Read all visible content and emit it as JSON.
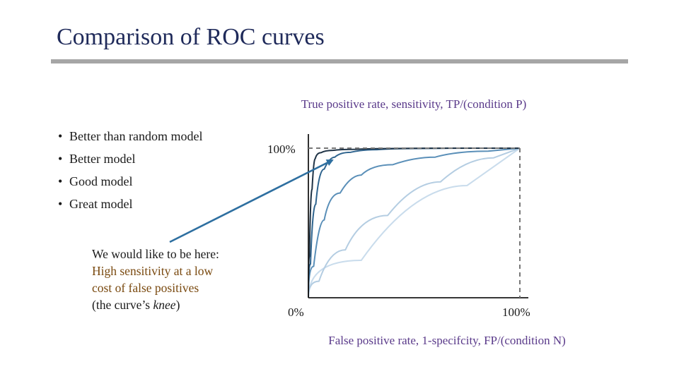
{
  "title": "Comparison of ROC curves",
  "bullets": [
    "Better than random model",
    "Better model",
    "Good model",
    "Great model"
  ],
  "note": {
    "line1": "We would like to be here:",
    "line2": "High sensitivity at a low",
    "line3": "cost of false positives",
    "line4_prefix": "(the curve’s ",
    "line4_em": "knee",
    "line4_suffix": ")"
  },
  "colors": {
    "title": "#1f2a5a",
    "axis_labels": "#5a3a8a",
    "arrow": "#2e6fa0",
    "series": [
      "#b8d0e4",
      "#5a8fb8",
      "#2f648e",
      "#1f3346"
    ]
  },
  "chart_data": {
    "type": "line",
    "xlabel": "False positive rate, 1-specifcity, FP/(condition N)",
    "ylabel": "True positive rate, sensitivity, TP/(condition P)",
    "x_ticks": [
      "0%",
      "100%"
    ],
    "y_ticks": [
      "100%"
    ],
    "xlim": [
      0,
      1
    ],
    "ylim": [
      0,
      1
    ],
    "grid": false,
    "series": [
      {
        "x": [
          0,
          0.5,
          1
        ],
        "y": [
          0,
          0.5,
          1
        ]
      },
      {
        "x": [
          0,
          0.1,
          0.25,
          0.5,
          0.75,
          1
        ],
        "y": [
          0,
          0.22,
          0.42,
          0.68,
          0.87,
          1
        ]
      },
      {
        "x": [
          0,
          0.05,
          0.1,
          0.2,
          0.3,
          0.5,
          0.7,
          1
        ],
        "y": [
          0,
          0.42,
          0.62,
          0.78,
          0.86,
          0.92,
          0.96,
          1
        ]
      },
      {
        "x": [
          0,
          0.02,
          0.05,
          0.1,
          0.15,
          0.25,
          0.4,
          0.6,
          1
        ],
        "y": [
          0,
          0.45,
          0.8,
          0.92,
          0.96,
          0.985,
          0.995,
          1,
          1
        ]
      },
      {
        "x": [
          0,
          0.01,
          0.025,
          0.04,
          0.08,
          0.15,
          0.3,
          0.5,
          1
        ],
        "y": [
          0,
          0.55,
          0.9,
          0.96,
          0.98,
          0.99,
          0.995,
          1.0,
          1
        ]
      }
    ]
  }
}
